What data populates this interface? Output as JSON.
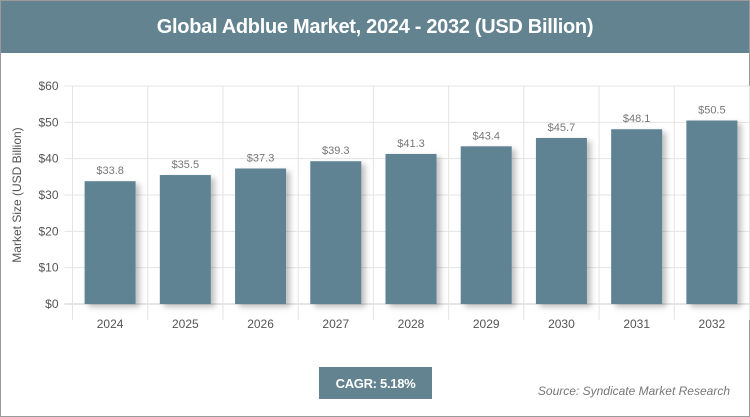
{
  "chart_data": {
    "type": "bar",
    "title": "Global Adblue Market, 2024 - 2032 (USD Billion)",
    "xlabel": "",
    "ylabel": "Market Size (USD Billion)",
    "categories": [
      "2024",
      "2025",
      "2026",
      "2027",
      "2028",
      "2029",
      "2030",
      "2031",
      "2032"
    ],
    "values": [
      33.8,
      35.5,
      37.3,
      39.3,
      41.3,
      43.4,
      45.7,
      48.1,
      50.5
    ],
    "data_labels": [
      "$33.8",
      "$35.5",
      "$37.3",
      "$39.3",
      "$41.3",
      "$43.4",
      "$45.7",
      "$48.1",
      "$50.5"
    ],
    "ylim": [
      0,
      60
    ],
    "yticks": [
      0,
      10,
      20,
      30,
      40,
      50,
      60
    ],
    "ytick_labels": [
      "$0",
      "$10",
      "$20",
      "$30",
      "$40",
      "$50",
      "$60"
    ],
    "grid": true,
    "bar_color": "#5f8393"
  },
  "cagr": "CAGR: 5.18%",
  "source": "Source: Syndicate Market Research",
  "colors": {
    "header": "#62838f",
    "bar": "#5f8393"
  }
}
